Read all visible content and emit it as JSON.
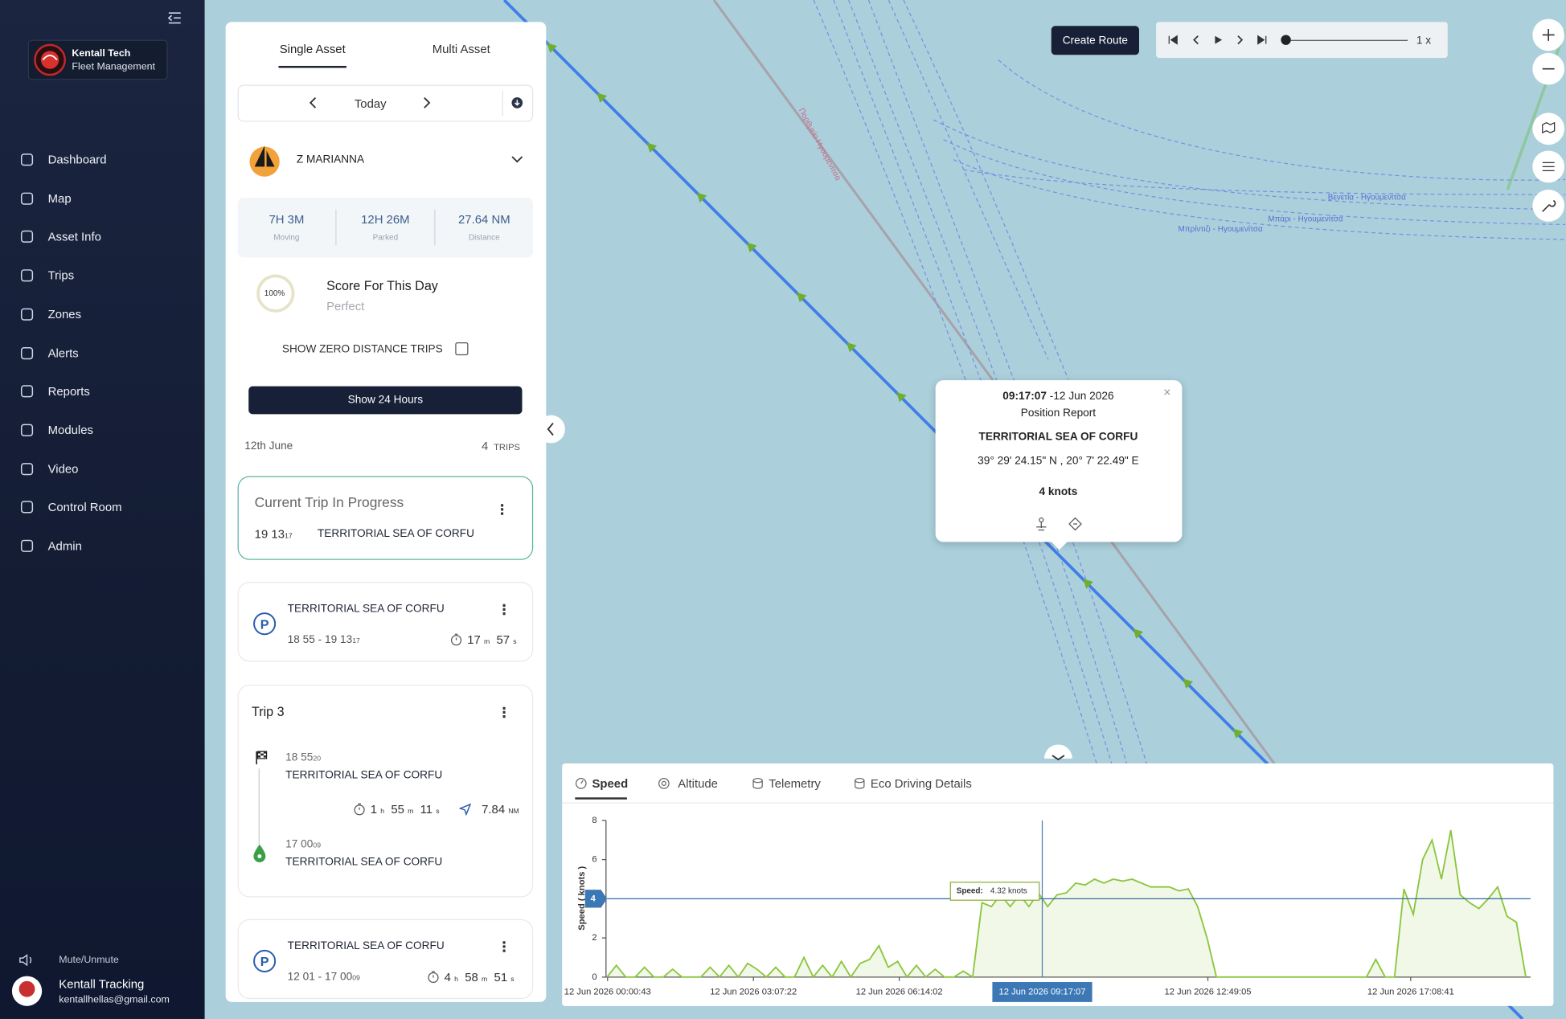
{
  "sidebar": {
    "brand": "Kentall Tech",
    "subtitle": "Fleet Management",
    "menu": [
      "Dashboard",
      "Map",
      "Asset Info",
      "Trips",
      "Zones",
      "Alerts",
      "Reports",
      "Modules",
      "Video",
      "Control Room",
      "Admin"
    ],
    "mute": "Mute/Unmute",
    "user": {
      "name": "Kentall Tracking",
      "email": "kentallhellas@gmail.com"
    }
  },
  "panel": {
    "tabs": [
      "Single Asset",
      "Multi Asset"
    ],
    "date": "Today",
    "asset": "Z MARIANNA",
    "stats": [
      {
        "value": "7H 3M",
        "label": "Moving"
      },
      {
        "value": "12H 26M",
        "label": "Parked"
      },
      {
        "value": "27.64 NM",
        "label": "Distance"
      }
    ],
    "score": {
      "badge": "100%",
      "title": "Score For This Day",
      "rating": "Perfect"
    },
    "zero_distance": "SHOW ZERO DISTANCE TRIPS",
    "show_24": "Show 24 Hours",
    "day": "12th June",
    "trip_count": "4",
    "trip_unit": "TRIPS",
    "trips": [
      {
        "title": "Current Trip In Progress",
        "time": "19 13",
        "sec": "17",
        "place": "TERRITORIAL SEA OF CORFU"
      },
      {
        "place": "TERRITORIAL SEA OF CORFU",
        "range": "18 55 - 19 13",
        "sec": "17",
        "duration": [
          [
            "17",
            "m"
          ],
          [
            "57",
            "s"
          ]
        ]
      },
      {
        "title": "Trip 3",
        "start": {
          "time": "18 55",
          "sec": "20",
          "place": "TERRITORIAL SEA OF CORFU"
        },
        "duration": [
          [
            "1",
            "h"
          ],
          [
            "55",
            "m"
          ],
          [
            "11",
            "s"
          ]
        ],
        "distance": "7.84",
        "distance_unit": "NM",
        "end": {
          "time": "17 00",
          "sec": "09",
          "place": "TERRITORIAL SEA OF CORFU"
        }
      },
      {
        "place": "TERRITORIAL SEA OF CORFU",
        "range": "12 01 - 17 00",
        "sec": "09",
        "duration": [
          [
            "4",
            "h"
          ],
          [
            "58",
            "m"
          ],
          [
            "51",
            "s"
          ]
        ]
      }
    ]
  },
  "controls": {
    "create_route": "Create Route",
    "playback_speed": "1 x"
  },
  "popup": {
    "time": "09:17:07",
    "date": "-12 Jun 2026",
    "type": "Position Report",
    "place": "TERRITORIAL SEA OF CORFU",
    "coords": "39° 29' 24.15\" N , 20° 7' 22.49\" E",
    "speed": "4 knots"
  },
  "map": {
    "labels": [
      "Βενετία - Ηγουμενίτσα",
      "Μπάρι - Ηγουμενίτσα",
      "Μπρίντιζι - Ηγουμενίτσα",
      "Πορθμείο Ηγουμενίτσα"
    ]
  },
  "chart_tabs": [
    "Speed",
    "Altitude",
    "Telemetry",
    "Eco Driving Details"
  ],
  "chart_data": {
    "type": "line",
    "ylabel": "Speed ( knots )",
    "color": "#8cc63f",
    "x": [
      0,
      0.2,
      0.4,
      0.6,
      0.8,
      1,
      1.2,
      1.4,
      1.6,
      1.8,
      2,
      2.2,
      2.4,
      2.6,
      2.8,
      3,
      3.2,
      3.4,
      3.6,
      3.8,
      4,
      4.2,
      4.4,
      4.6,
      4.8,
      5,
      5.2,
      5.4,
      5.6,
      5.8,
      6,
      6.2,
      6.4,
      6.6,
      6.8,
      7,
      7.2,
      7.4,
      7.6,
      7.8,
      8,
      8.2,
      8.4,
      8.6,
      8.8,
      9,
      9.2,
      9.4,
      9.6,
      9.8,
      10,
      10.2,
      10.4,
      10.6,
      10.8,
      11,
      11.2,
      11.4,
      11.6,
      11.8,
      12,
      12.2,
      12.4,
      12.6,
      12.8,
      13,
      13.2,
      13.4,
      13.6,
      13.8,
      14,
      14.2,
      14.4,
      14.6,
      14.8,
      15,
      15.2,
      15.4,
      15.6,
      15.8,
      16,
      16.2,
      16.4,
      16.6,
      16.8,
      17,
      17.2,
      17.4,
      17.6,
      17.8,
      18,
      18.2,
      18.4,
      18.6,
      18.8,
      19,
      19.2,
      19.4,
      19.6
    ],
    "values": [
      0,
      0.6,
      0,
      0,
      0.5,
      0,
      0,
      0.4,
      0,
      0,
      0,
      0.5,
      0,
      0.6,
      0,
      0.7,
      0.4,
      0,
      0.5,
      0,
      0,
      1,
      0,
      0.6,
      0,
      0.8,
      0,
      0.7,
      0.9,
      1.6,
      0.5,
      0.8,
      0,
      0.6,
      0,
      0.4,
      0,
      0,
      0.3,
      0,
      3.8,
      3.6,
      4.2,
      3.6,
      4.2,
      3.6,
      4.3,
      3.6,
      4.2,
      4.3,
      4.8,
      4.7,
      5,
      4.8,
      5,
      4.9,
      5,
      4.8,
      4.6,
      4.6,
      4.6,
      4.4,
      4.5,
      3.6,
      2,
      0,
      0,
      0,
      0,
      0,
      0,
      0,
      0,
      0,
      0,
      0,
      0,
      0,
      0,
      0,
      0,
      0,
      0.9,
      0,
      0,
      4.5,
      3.2,
      6,
      7,
      5,
      7.5,
      4.2,
      3.8,
      3.5,
      4,
      4.6,
      3.1,
      2.8,
      0
    ],
    "xlim": [
      0,
      19.7
    ],
    "ylim": [
      0,
      8
    ],
    "yticks": [
      0,
      2,
      4,
      6,
      8
    ],
    "xticks": [
      {
        "value": 0.012,
        "label": "12 Jun 2026 00:00:43"
      },
      {
        "value": 3.123,
        "label": "12 Jun 2026 03:07:22"
      },
      {
        "value": 6.234,
        "label": "12 Jun 2026 06:14:02"
      },
      {
        "value": 12.818,
        "label": "12 Jun 2026 12:49:05"
      },
      {
        "value": 17.145,
        "label": "12 Jun 2026 17:08:41"
      }
    ],
    "reference_line": 4,
    "cursor": {
      "x": 9.285,
      "label": "12 Jun 2026 09:17:07"
    },
    "tooltip": {
      "label": "Speed:",
      "value": "4.32 knots"
    }
  }
}
